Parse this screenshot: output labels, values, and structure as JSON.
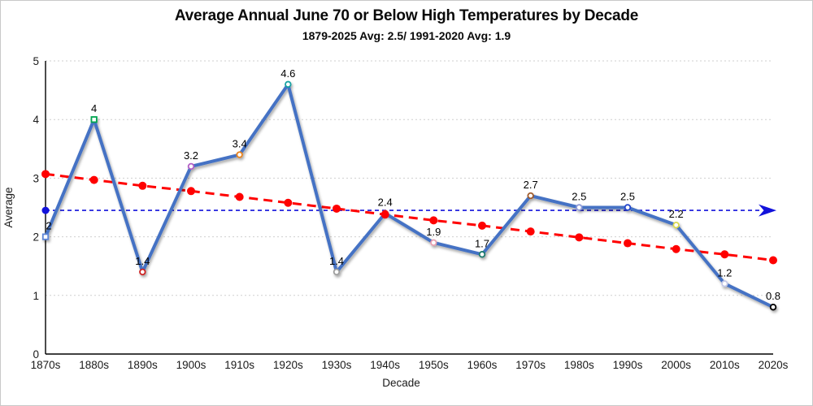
{
  "chart_data": {
    "type": "line",
    "title": "Average Annual June 70 or Below High Temperatures by Decade",
    "subtitle": "1879-2025 Avg: 2.5/ 1991-2020 Avg: 1.9",
    "xlabel": "Decade",
    "ylabel": "Average",
    "ylim": [
      0,
      5
    ],
    "yticks": [
      0,
      1,
      2,
      3,
      4,
      5
    ],
    "grid": true,
    "legend": false,
    "categories": [
      "1870s",
      "1880s",
      "1890s",
      "1900s",
      "1910s",
      "1920s",
      "1930s",
      "1940s",
      "1950s",
      "1960s",
      "1970s",
      "1980s",
      "1990s",
      "2000s",
      "2010s",
      "2020s"
    ],
    "series": [
      {
        "name": "average-annual-days-by-decade",
        "type": "line",
        "color": "#4472C4",
        "line_width": 4,
        "values": [
          2,
          4,
          1.4,
          3.2,
          3.4,
          4.6,
          1.4,
          2.4,
          1.9,
          1.7,
          2.7,
          2.5,
          2.5,
          2.2,
          1.2,
          0.8
        ],
        "point_labels": [
          "2",
          "4",
          "1.4",
          "3.2",
          "3.4",
          "4.6",
          "1.4",
          "2.4",
          "1.9",
          "1.7",
          "2.7",
          "2.5",
          "2.5",
          "2.2",
          "1.2",
          "0.8"
        ],
        "marker_colors": [
          "#5B84D6",
          "#00A550",
          "#CC2222",
          "#B25FC6",
          "#E8821E",
          "#17A2A2",
          "#9E9E9E",
          "#E03030",
          "#E8A0B0",
          "#1E7A6E",
          "#A05A2C",
          "#8E9AD8",
          "#2244CC",
          "#D9D94F",
          "#C4C8E6",
          "#000000"
        ],
        "marker_shapes": [
          "square",
          "square",
          "circle",
          "circle",
          "circle",
          "circle",
          "circle",
          "circle",
          "circle",
          "circle",
          "circle",
          "circle",
          "circle",
          "circle",
          "circle",
          "circle"
        ]
      },
      {
        "name": "linear-trend",
        "type": "line-dashed",
        "color": "#FF0000",
        "line_width": 3,
        "values": [
          3.07,
          2.97,
          2.87,
          2.78,
          2.68,
          2.58,
          2.48,
          2.38,
          2.28,
          2.19,
          2.09,
          1.99,
          1.89,
          1.79,
          1.7,
          1.6
        ]
      },
      {
        "name": "long-term-average-reference",
        "type": "horizontal-dashed-arrow",
        "color": "#1212DB",
        "value": 2.45
      }
    ]
  }
}
